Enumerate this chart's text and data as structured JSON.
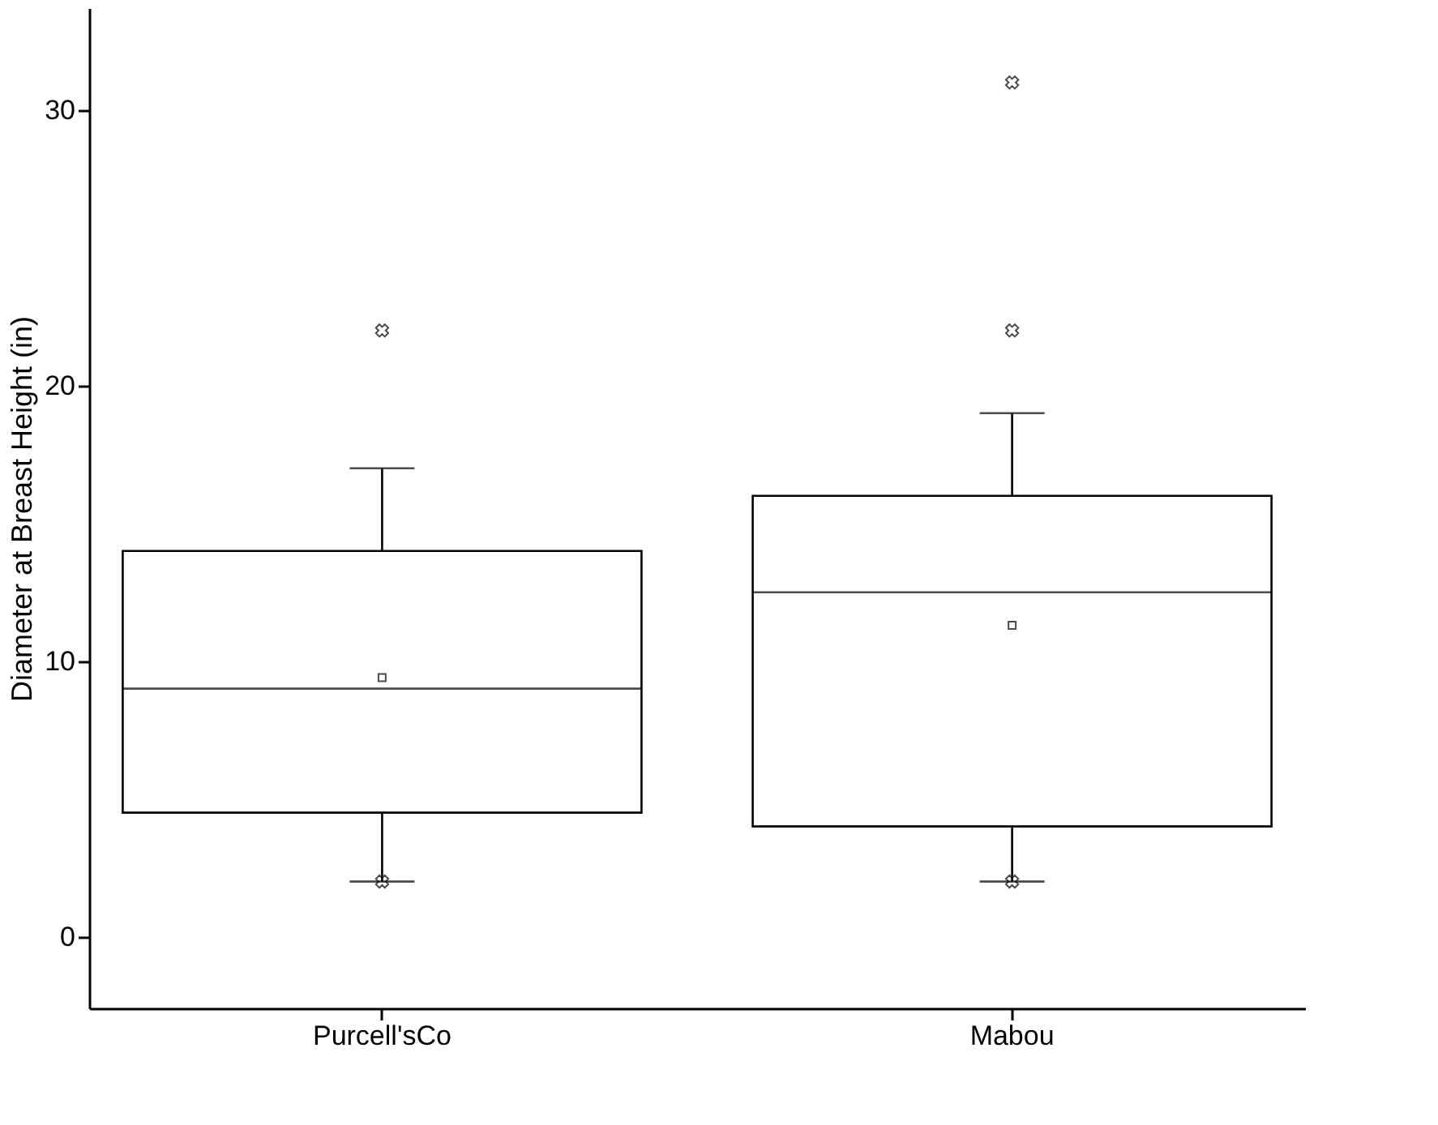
{
  "chart_data": {
    "type": "box",
    "categories": [
      "Purcell'sCo",
      "Mabou"
    ],
    "boxes": [
      {
        "low": 2,
        "q1": 4.5,
        "median": 9,
        "q3": 14,
        "high": 17,
        "mean": 9.4,
        "outliers": [
          22,
          2
        ]
      },
      {
        "low": 2,
        "q1": 4,
        "median": 12.5,
        "q3": 16,
        "high": 19,
        "mean": 11.3,
        "outliers": [
          31,
          22,
          2
        ]
      }
    ],
    "ylabel": "Diameter at Breast Height (in)",
    "ylim": [
      -2.6,
      33.7
    ],
    "yticks": [
      0,
      10,
      20,
      30
    ],
    "grid": false
  }
}
